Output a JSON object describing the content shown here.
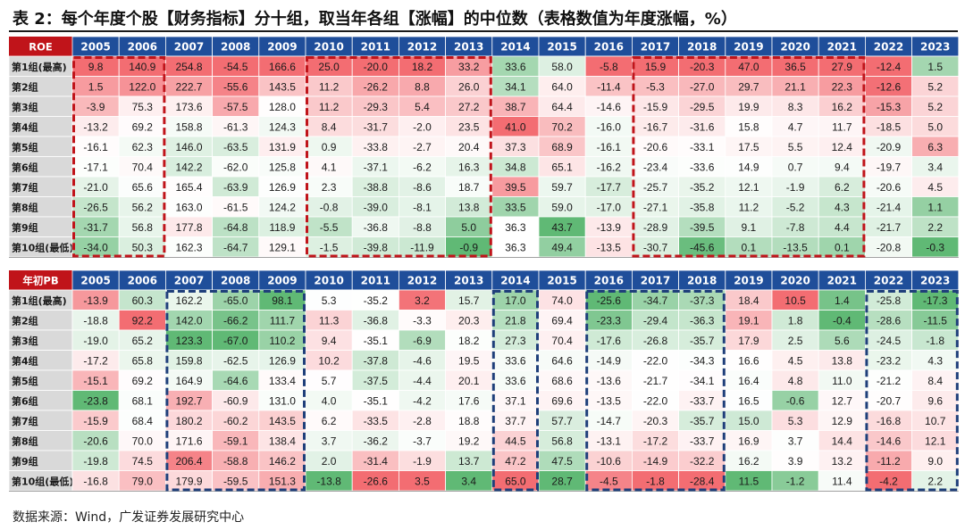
{
  "title": "表 2：每个年度个股【财务指标】分十组，取当年各组【涨幅】的中位数（表格数值为年度涨幅，%）",
  "source": "数据来源：Wind，广发证券发展研究中心",
  "colors": {
    "header_bg": "#1f4e9a",
    "corner_bg": "#c0141a",
    "row_label_bg": "#d9d9d9",
    "positive": "#f2656b",
    "negative": "#58b56e",
    "red_box": "#c0141a",
    "blue_box": "#1f3f7a"
  },
  "chart_data": [
    {
      "type": "table",
      "corner_label": "ROE",
      "columns": [
        "2005",
        "2006",
        "2007",
        "2008",
        "2009",
        "2010",
        "2011",
        "2012",
        "2013",
        "2014",
        "2015",
        "2016",
        "2017",
        "2018",
        "2019",
        "2020",
        "2021",
        "2022",
        "2023"
      ],
      "rows": [
        "第1组(最高)",
        "第2组",
        "第3组",
        "第4组",
        "第5组",
        "第6组",
        "第7组",
        "第8组",
        "第9组",
        "第10组(最低)"
      ],
      "values": [
        [
          9.8,
          140.9,
          254.8,
          -54.5,
          166.6,
          25.0,
          -20.0,
          18.2,
          33.2,
          33.6,
          58.0,
          -5.8,
          15.9,
          -20.3,
          47.0,
          36.5,
          27.9,
          -12.4,
          1.5
        ],
        [
          1.5,
          122.0,
          222.7,
          -55.6,
          143.5,
          11.2,
          -26.2,
          8.8,
          26.0,
          34.1,
          64.0,
          -11.4,
          -5.3,
          -27.0,
          29.7,
          21.1,
          22.3,
          -12.6,
          5.2
        ],
        [
          -3.9,
          75.3,
          173.6,
          -57.5,
          128.0,
          11.2,
          -29.3,
          5.4,
          27.2,
          38.7,
          64.4,
          -14.6,
          -15.9,
          -29.5,
          19.9,
          8.3,
          16.2,
          -15.3,
          5.2
        ],
        [
          -13.2,
          69.2,
          158.8,
          -61.3,
          124.3,
          8.4,
          -31.7,
          -2.0,
          23.5,
          41.0,
          70.2,
          -16.0,
          -16.7,
          -31.6,
          15.8,
          4.7,
          11.7,
          -18.5,
          5.0
        ],
        [
          -16.1,
          62.3,
          146.0,
          -63.5,
          131.9,
          0.9,
          -33.8,
          -2.7,
          20.4,
          37.3,
          68.9,
          -16.1,
          -20.6,
          -33.1,
          17.5,
          5.5,
          12.4,
          -20.9,
          6.3
        ],
        [
          -17.1,
          70.4,
          142.2,
          -62.0,
          125.8,
          4.1,
          -37.1,
          -6.2,
          16.3,
          34.8,
          65.1,
          -16.2,
          -23.4,
          -33.6,
          14.9,
          0.7,
          9.4,
          -19.7,
          3.4
        ],
        [
          -21.0,
          65.6,
          165.4,
          -63.9,
          126.9,
          2.3,
          -38.8,
          -8.6,
          18.7,
          39.5,
          59.7,
          -17.7,
          -25.7,
          -35.2,
          12.1,
          -1.9,
          6.2,
          -20.6,
          4.5
        ],
        [
          -26.5,
          56.2,
          163.0,
          -61.5,
          124.2,
          -0.8,
          -39.0,
          -8.1,
          13.8,
          33.5,
          59.0,
          -17.0,
          -27.1,
          -35.8,
          11.2,
          -5.2,
          4.3,
          -21.4,
          1.1
        ],
        [
          -31.7,
          56.8,
          177.8,
          -64.8,
          118.9,
          -5.5,
          -36.8,
          -8.8,
          5.0,
          36.3,
          43.7,
          -13.9,
          -28.9,
          -39.5,
          9.1,
          -7.8,
          4.4,
          -21.7,
          2.2
        ],
        [
          -34.0,
          50.3,
          162.3,
          -64.7,
          129.1,
          -1.5,
          -39.8,
          -11.9,
          -0.9,
          36.3,
          49.4,
          -13.5,
          -30.7,
          -45.6,
          0.1,
          -13.5,
          0.1,
          -20.8,
          -0.3
        ]
      ],
      "highlight_color": "red",
      "highlight_ranges": [
        [
          0,
          1
        ],
        [
          5,
          8
        ],
        [
          12,
          16
        ]
      ]
    },
    {
      "type": "table",
      "corner_label": "年初PB",
      "columns": [
        "2005",
        "2006",
        "2007",
        "2008",
        "2009",
        "2010",
        "2011",
        "2012",
        "2013",
        "2014",
        "2015",
        "2016",
        "2017",
        "2018",
        "2019",
        "2020",
        "2021",
        "2022",
        "2023"
      ],
      "rows": [
        "第1组(最高)",
        "第2组",
        "第3组",
        "第4组",
        "第5组",
        "第6组",
        "第7组",
        "第8组",
        "第9组",
        "第10组(最低)"
      ],
      "values": [
        [
          -13.9,
          60.3,
          162.2,
          -65.0,
          98.1,
          5.3,
          -35.2,
          3.2,
          15.7,
          17.0,
          74.0,
          -25.6,
          -34.7,
          -37.3,
          18.4,
          10.5,
          1.4,
          -25.8,
          -17.3
        ],
        [
          -18.8,
          92.2,
          142.0,
          -66.2,
          111.7,
          11.3,
          -36.8,
          -3.3,
          20.3,
          21.8,
          69.4,
          -23.3,
          -29.4,
          -36.3,
          19.1,
          1.8,
          -0.4,
          -28.6,
          -11.5
        ],
        [
          -19.0,
          65.2,
          123.3,
          -67.0,
          110.2,
          9.4,
          -35.1,
          -6.9,
          18.2,
          27.3,
          70.4,
          -17.6,
          -26.8,
          -35.7,
          17.9,
          2.5,
          5.6,
          -24.5,
          -1.8
        ],
        [
          -17.2,
          65.8,
          159.8,
          -62.5,
          126.9,
          10.2,
          -37.8,
          -4.6,
          19.5,
          33.6,
          64.6,
          -14.9,
          -22.0,
          -34.3,
          16.6,
          4.5,
          13.8,
          -23.2,
          4.3
        ],
        [
          -15.1,
          69.2,
          164.9,
          -64.6,
          133.4,
          5.7,
          -37.5,
          -4.4,
          20.1,
          33.6,
          68.6,
          -13.6,
          -21.7,
          -34.1,
          16.4,
          4.8,
          11.0,
          -21.2,
          8.4
        ],
        [
          -23.8,
          68.1,
          192.7,
          -60.9,
          131.0,
          4.0,
          -35.1,
          -4.2,
          17.6,
          37.1,
          69.6,
          -13.5,
          -22.0,
          -33.7,
          16.5,
          -0.6,
          12.7,
          -20.7,
          9.6
        ],
        [
          -15.9,
          68.4,
          180.2,
          -60.2,
          143.5,
          6.2,
          -33.5,
          -2.8,
          18.8,
          37.7,
          57.7,
          -14.7,
          -20.3,
          -35.7,
          15.0,
          5.3,
          12.9,
          -16.8,
          10.7
        ],
        [
          -20.6,
          70.0,
          171.6,
          -59.1,
          138.4,
          3.7,
          -36.2,
          -3.7,
          19.2,
          44.5,
          56.8,
          -13.1,
          -17.2,
          -33.7,
          16.9,
          3.7,
          14.4,
          -14.6,
          12.1
        ],
        [
          -19.8,
          74.5,
          206.4,
          -58.8,
          146.2,
          2.0,
          -31.4,
          -1.9,
          13.7,
          47.2,
          47.5,
          -10.6,
          -14.9,
          -32.2,
          16.2,
          3.9,
          13.2,
          -11.2,
          9.0
        ],
        [
          -16.8,
          79.0,
          179.9,
          -59.5,
          151.3,
          -13.8,
          -26.6,
          3.5,
          3.4,
          65.0,
          28.7,
          -4.5,
          -1.8,
          -28.4,
          11.5,
          -1.2,
          11.4,
          -4.2,
          2.2
        ]
      ],
      "highlight_color": "blue",
      "highlight_ranges": [
        [
          2,
          4
        ],
        [
          9,
          9
        ],
        [
          11,
          13
        ],
        [
          17,
          18
        ]
      ]
    }
  ]
}
